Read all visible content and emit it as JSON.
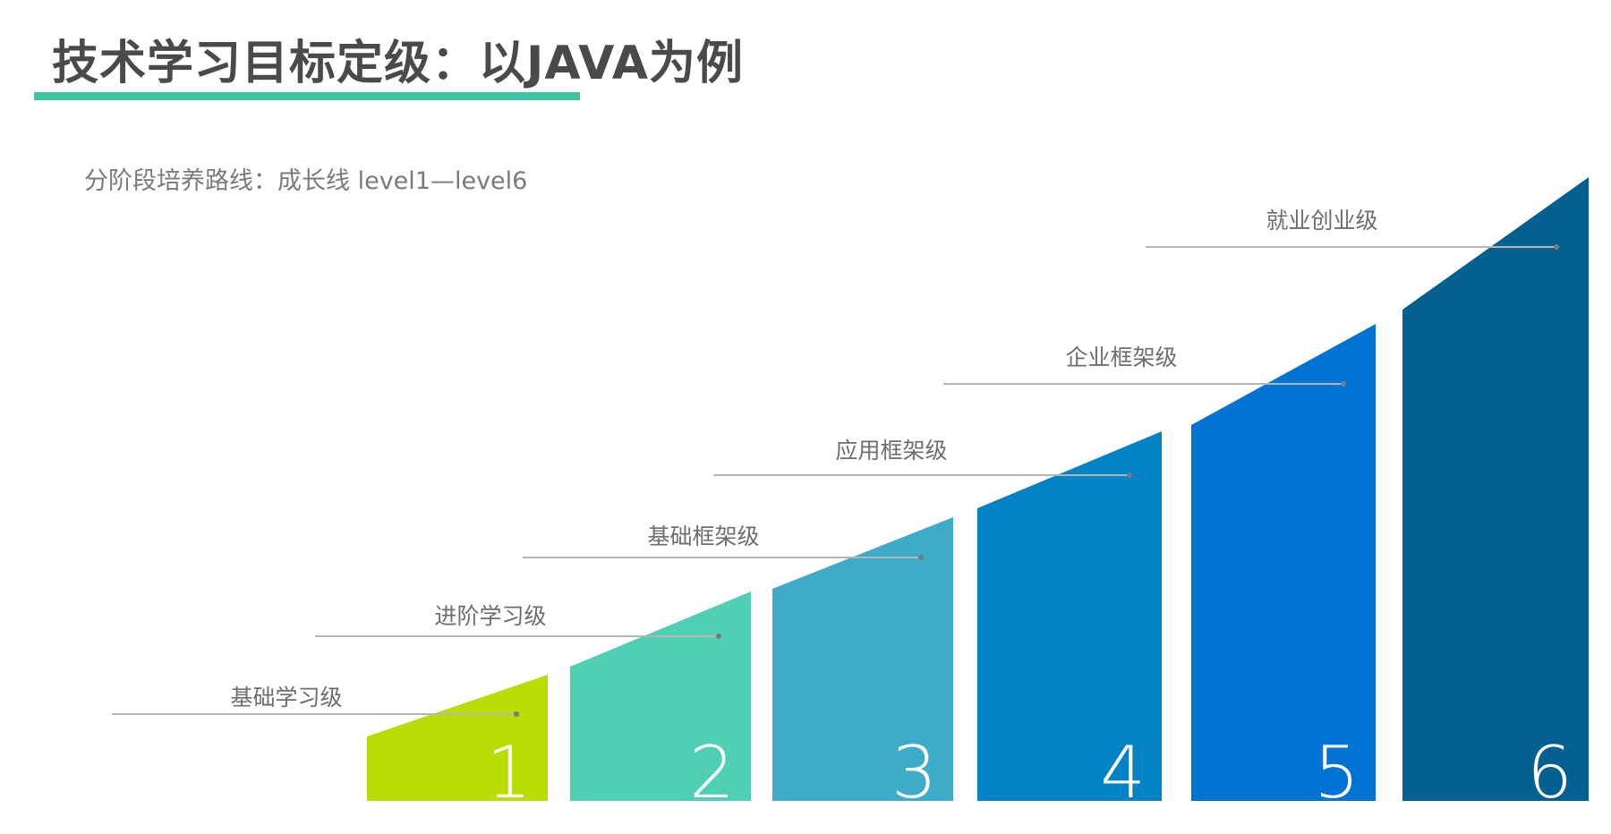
{
  "title": "技术学习目标定级：以JAVA为例",
  "subtitle": "分阶段培养路线：成长线 level1—level6",
  "colors": {
    "title_underline": "#3cc4a5",
    "leader_line": "#b5b5b5",
    "leader_dot": "#7a7a7a"
  },
  "steps": [
    {
      "number": "1",
      "label": "基础学习级",
      "color": "#b7dd04"
    },
    {
      "number": "2",
      "label": "进阶学习级",
      "color": "#4fd0b4"
    },
    {
      "number": "3",
      "label": "基础框架级",
      "color": "#3eabc9"
    },
    {
      "number": "4",
      "label": "应用框架级",
      "color": "#0383c4"
    },
    {
      "number": "5",
      "label": "企业框架级",
      "color": "#0173d3"
    },
    {
      "number": "6",
      "label": "就业创业级",
      "color": "#03608f"
    }
  ]
}
